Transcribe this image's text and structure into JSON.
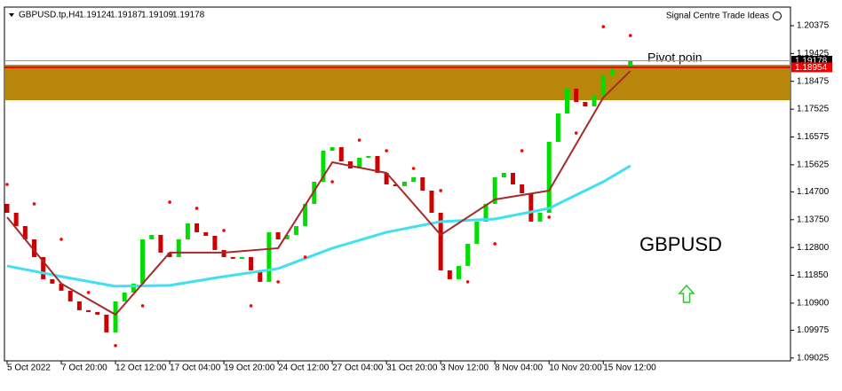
{
  "chart_data": {
    "type": "candlestick",
    "header": {
      "symbol": "GBPUSD.tp,H4",
      "ohlc": [
        1.19124,
        1.19187,
        1.19109,
        1.19178
      ]
    },
    "watermark": "Signal Centre Trade Ideas",
    "categories": [
      "5 Oct 2022",
      null,
      null,
      null,
      null,
      null,
      "7 Oct 20:00",
      null,
      null,
      null,
      null,
      null,
      "12 Oct 12:00",
      null,
      null,
      null,
      null,
      null,
      "17 Oct 04:00",
      null,
      null,
      null,
      null,
      null,
      "19 Oct 20:00",
      null,
      null,
      null,
      null,
      null,
      "24 Oct 12:00",
      null,
      null,
      null,
      null,
      null,
      "27 Oct 04:00",
      null,
      null,
      null,
      null,
      null,
      "31 Oct 20:00",
      null,
      null,
      null,
      null,
      null,
      "3 Nov 12:00",
      null,
      null,
      null,
      null,
      null,
      "8 Nov 04:00",
      null,
      null,
      null,
      null,
      null,
      "10 Nov 20:00",
      null,
      null,
      null,
      null,
      null,
      "15 Nov 12:00",
      null,
      null,
      null
    ],
    "open": [
      1.1429,
      1.13987,
      1.13533,
      1.13079,
      1.12474,
      1.11718,
      1.11567,
      1.11325,
      1.10961,
      1.10659,
      1.10598,
      1.10508,
      1.09902,
      1.10961,
      1.11264,
      1.11567,
      1.13079,
      1.13231,
      1.12626,
      1.12474,
      1.13079,
      1.13624,
      1.13322,
      1.132,
      1.12716,
      1.12474,
      1.12414,
      1.12474,
      1.1202,
      1.11627,
      1.13322,
      1.13079,
      1.13231,
      1.13533,
      1.1429,
      1.15046,
      1.16105,
      1.16226,
      1.15742,
      1.155,
      1.15863,
      1.15924,
      1.15349,
      1.14955,
      1.14895,
      1.15046,
      1.15197,
      1.14744,
      1.13987,
      1.1202,
      1.11718,
      1.12172,
      1.12928,
      1.13685,
      1.1429,
      1.15197,
      1.15349,
      1.14955,
      1.14653,
      1.13685,
      1.13987,
      1.16408,
      1.17376,
      1.18223,
      1.17769,
      1.17618,
      1.17981,
      1.18677,
      1.18889,
      1.1898
    ],
    "close": [
      1.13987,
      1.13533,
      1.13079,
      1.12474,
      1.11718,
      1.11567,
      1.11325,
      1.10961,
      1.10659,
      1.10598,
      1.10508,
      1.09902,
      1.10961,
      1.11264,
      1.11567,
      1.13079,
      1.13231,
      1.12626,
      1.12474,
      1.13079,
      1.13624,
      1.13322,
      1.132,
      1.12716,
      1.12474,
      1.12414,
      1.12474,
      1.1202,
      1.11627,
      1.13322,
      1.13079,
      1.13231,
      1.13533,
      1.1429,
      1.15046,
      1.16105,
      1.16226,
      1.15742,
      1.155,
      1.15863,
      1.15924,
      1.15349,
      1.14955,
      1.14895,
      1.15046,
      1.15197,
      1.14744,
      1.13987,
      1.1202,
      1.11718,
      1.12172,
      1.12928,
      1.13685,
      1.1429,
      1.15197,
      1.15349,
      1.14955,
      1.14653,
      1.13685,
      1.13987,
      1.16408,
      1.17376,
      1.18223,
      1.17769,
      1.17618,
      1.17981,
      1.18677,
      1.18889,
      1.1898,
      1.19178
    ],
    "up_color": "#00dd00",
    "down_color": "#cc0000",
    "lines": [
      {
        "color": "#40e0f0",
        "width": 3,
        "x": [
          0,
          6,
          12,
          18,
          24,
          30,
          36,
          42,
          48,
          54,
          60,
          66,
          69
        ],
        "values": [
          1.12172,
          1.11809,
          1.11476,
          1.11506,
          1.11809,
          1.12081,
          1.12777,
          1.13322,
          1.13685,
          1.13775,
          1.14138,
          1.15046,
          1.15591
        ]
      },
      {
        "color": "#a52a2a",
        "width": 2,
        "x": [
          0,
          6,
          12,
          18,
          24,
          30,
          36,
          42,
          48,
          54,
          60,
          66,
          69
        ],
        "values": [
          1.13836,
          1.11567,
          1.10508,
          1.12626,
          1.12626,
          1.12777,
          1.15712,
          1.15349,
          1.13231,
          1.14441,
          1.14744,
          1.17921,
          1.18828
        ]
      }
    ],
    "sar": {
      "color": "#ff0000",
      "x": [
        0,
        3,
        6,
        9,
        12,
        15,
        18,
        21,
        24,
        27,
        30,
        33,
        36,
        39,
        42,
        45,
        48,
        51,
        54,
        57,
        60,
        63,
        66,
        69
      ],
      "values": [
        1.14955,
        1.1429,
        1.13079,
        1.11264,
        1.09449,
        1.1081,
        1.1435,
        1.14138,
        1.13382,
        1.1081,
        1.11627,
        1.12474,
        1.15046,
        1.16468,
        1.16105,
        1.155,
        1.14744,
        1.11627,
        1.12928,
        1.16105,
        1.13836,
        1.1671,
        1.20341,
        1.20039
      ]
    },
    "zone": {
      "from": 1.1783,
      "to": 1.1904,
      "color": "#b8860b"
    },
    "levels": [
      {
        "value": 1.19178,
        "color": "#999999",
        "tag_color": "#000000"
      },
      {
        "value": 1.18954,
        "color": "#ee0000",
        "tag_color": "#ee0000"
      }
    ],
    "annotations": {
      "pivot": "Pivot poin",
      "symbol": "GBPUSD"
    },
    "ylim": [
      1.0893,
      1.2101
    ],
    "yticks": [
      1.20375,
      1.19425,
      1.18475,
      1.17525,
      1.16575,
      1.15625,
      {
        "value": 1.147,
        "label": "1.14700"
      },
      {
        "value": 1.1375,
        "label": "1.13750"
      },
      {
        "value": 1.128,
        "label": "1.12800"
      },
      {
        "value": 1.1185,
        "label": "1.11850"
      },
      {
        "value": 1.109,
        "label": "1.10900"
      },
      1.09975,
      1.09025
    ]
  }
}
